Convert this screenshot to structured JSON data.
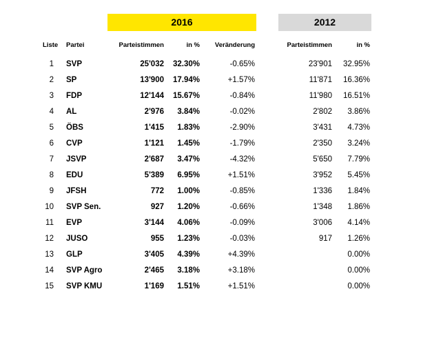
{
  "bands": {
    "year_2016": "2016",
    "year_2012": "2012",
    "color_2016": "#ffe600",
    "color_2012": "#d9d9d9"
  },
  "headers": {
    "liste": "Liste",
    "partei": "Partei",
    "parteistimmen_2016": "Parteistimmen",
    "pct_2016": "in %",
    "veraenderung": "Veränderung",
    "parteistimmen_2012": "Parteistimmen",
    "pct_2012": "in %"
  },
  "rows": [
    {
      "liste": "1",
      "partei": "SVP",
      "votes_2016": "25'032",
      "pct_2016": "32.30%",
      "change": "-0.65%",
      "votes_2012": "23'901",
      "pct_2012": "32.95%"
    },
    {
      "liste": "2",
      "partei": "SP",
      "votes_2016": "13'900",
      "pct_2016": "17.94%",
      "change": "+1.57%",
      "votes_2012": "11'871",
      "pct_2012": "16.36%"
    },
    {
      "liste": "3",
      "partei": "FDP",
      "votes_2016": "12'144",
      "pct_2016": "15.67%",
      "change": "-0.84%",
      "votes_2012": "11'980",
      "pct_2012": "16.51%"
    },
    {
      "liste": "4",
      "partei": "AL",
      "votes_2016": "2'976",
      "pct_2016": "3.84%",
      "change": "-0.02%",
      "votes_2012": "2'802",
      "pct_2012": "3.86%"
    },
    {
      "liste": "5",
      "partei": "ÖBS",
      "votes_2016": "1'415",
      "pct_2016": "1.83%",
      "change": "-2.90%",
      "votes_2012": "3'431",
      "pct_2012": "4.73%"
    },
    {
      "liste": "6",
      "partei": "CVP",
      "votes_2016": "1'121",
      "pct_2016": "1.45%",
      "change": "-1.79%",
      "votes_2012": "2'350",
      "pct_2012": "3.24%"
    },
    {
      "liste": "7",
      "partei": "JSVP",
      "votes_2016": "2'687",
      "pct_2016": "3.47%",
      "change": "-4.32%",
      "votes_2012": "5'650",
      "pct_2012": "7.79%"
    },
    {
      "liste": "8",
      "partei": "EDU",
      "votes_2016": "5'389",
      "pct_2016": "6.95%",
      "change": "+1.51%",
      "votes_2012": "3'952",
      "pct_2012": "5.45%"
    },
    {
      "liste": "9",
      "partei": "JFSH",
      "votes_2016": "772",
      "pct_2016": "1.00%",
      "change": "-0.85%",
      "votes_2012": "1'336",
      "pct_2012": "1.84%"
    },
    {
      "liste": "10",
      "partei": "SVP Sen.",
      "votes_2016": "927",
      "pct_2016": "1.20%",
      "change": "-0.66%",
      "votes_2012": "1'348",
      "pct_2012": "1.86%"
    },
    {
      "liste": "11",
      "partei": "EVP",
      "votes_2016": "3'144",
      "pct_2016": "4.06%",
      "change": "-0.09%",
      "votes_2012": "3'006",
      "pct_2012": "4.14%"
    },
    {
      "liste": "12",
      "partei": "JUSO",
      "votes_2016": "955",
      "pct_2016": "1.23%",
      "change": "-0.03%",
      "votes_2012": "917",
      "pct_2012": "1.26%"
    },
    {
      "liste": "13",
      "partei": "GLP",
      "votes_2016": "3'405",
      "pct_2016": "4.39%",
      "change": "+4.39%",
      "votes_2012": "",
      "pct_2012": "0.00%"
    },
    {
      "liste": "14",
      "partei": "SVP Agro",
      "votes_2016": "2'465",
      "pct_2016": "3.18%",
      "change": "+3.18%",
      "votes_2012": "",
      "pct_2012": "0.00%"
    },
    {
      "liste": "15",
      "partei": "SVP KMU",
      "votes_2016": "1'169",
      "pct_2016": "1.51%",
      "change": "+1.51%",
      "votes_2012": "",
      "pct_2012": "0.00%"
    }
  ]
}
